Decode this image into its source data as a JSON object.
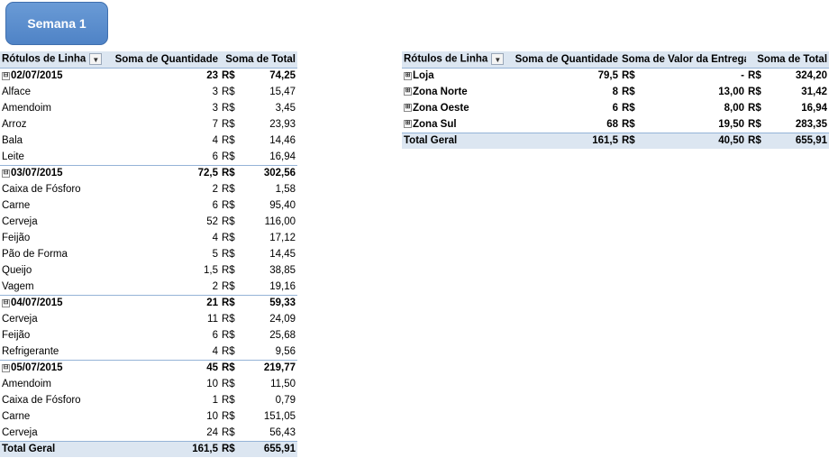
{
  "button": {
    "label": "Semana 1"
  },
  "left_table": {
    "headers": [
      "Rótulos de Linha",
      "Soma de Quantidade",
      "Soma de Total"
    ],
    "currency": "R$",
    "groups": [
      {
        "label": "02/07/2015",
        "qty": "23",
        "total": "74,25",
        "items": [
          {
            "label": "Alface",
            "qty": "3",
            "total": "15,47"
          },
          {
            "label": "Amendoim",
            "qty": "3",
            "total": "3,45"
          },
          {
            "label": "Arroz",
            "qty": "7",
            "total": "23,93"
          },
          {
            "label": "Bala",
            "qty": "4",
            "total": "14,46"
          },
          {
            "label": "Leite",
            "qty": "6",
            "total": "16,94"
          }
        ]
      },
      {
        "label": "03/07/2015",
        "qty": "72,5",
        "total": "302,56",
        "items": [
          {
            "label": "Caixa de Fósforo",
            "qty": "2",
            "total": "1,58"
          },
          {
            "label": "Carne",
            "qty": "6",
            "total": "95,40"
          },
          {
            "label": "Cerveja",
            "qty": "52",
            "total": "116,00"
          },
          {
            "label": "Feijão",
            "qty": "4",
            "total": "17,12"
          },
          {
            "label": "Pão de Forma",
            "qty": "5",
            "total": "14,45"
          },
          {
            "label": "Queijo",
            "qty": "1,5",
            "total": "38,85"
          },
          {
            "label": "Vagem",
            "qty": "2",
            "total": "19,16"
          }
        ]
      },
      {
        "label": "04/07/2015",
        "qty": "21",
        "total": "59,33",
        "items": [
          {
            "label": "Cerveja",
            "qty": "11",
            "total": "24,09"
          },
          {
            "label": "Feijão",
            "qty": "6",
            "total": "25,68"
          },
          {
            "label": "Refrigerante",
            "qty": "4",
            "total": "9,56"
          }
        ]
      },
      {
        "label": "05/07/2015",
        "qty": "45",
        "total": "219,77",
        "items": [
          {
            "label": "Amendoim",
            "qty": "10",
            "total": "11,50"
          },
          {
            "label": "Caixa de Fósforo",
            "qty": "1",
            "total": "0,79"
          },
          {
            "label": "Carne",
            "qty": "10",
            "total": "151,05"
          },
          {
            "label": "Cerveja",
            "qty": "24",
            "total": "56,43"
          }
        ]
      }
    ],
    "grand_total": {
      "label": "Total Geral",
      "qty": "161,5",
      "total": "655,91"
    }
  },
  "right_table": {
    "headers": [
      "Rótulos de Linha",
      "Soma de Quantidade",
      "Soma de Valor da Entrega",
      "Soma de Total"
    ],
    "currency": "R$",
    "rows": [
      {
        "label": "Loja",
        "qty": "79,5",
        "delivery": "-",
        "total": "324,20"
      },
      {
        "label": "Zona Norte",
        "qty": "8",
        "delivery": "13,00",
        "total": "31,42"
      },
      {
        "label": "Zona Oeste",
        "qty": "6",
        "delivery": "8,00",
        "total": "16,94"
      },
      {
        "label": "Zona Sul",
        "qty": "68",
        "delivery": "19,50",
        "total": "283,35"
      }
    ],
    "grand_total": {
      "label": "Total Geral",
      "qty": "161,5",
      "delivery": "40,50",
      "total": "655,91"
    }
  },
  "icons": {
    "collapse": "⊟",
    "expand": "⊞",
    "filter": "▼"
  },
  "colors": {
    "header_bg": "#dce6f1",
    "border": "#95b3d7",
    "button_bg": "#5b8fd0"
  }
}
